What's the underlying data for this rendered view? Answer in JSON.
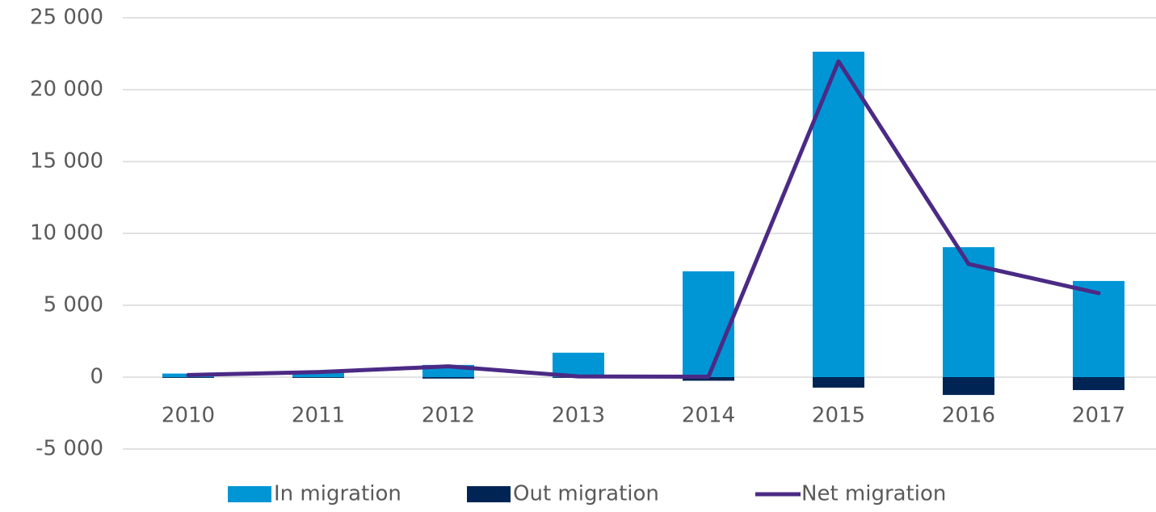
{
  "chart_data": {
    "type": "bar-line",
    "categories": [
      "2010",
      "2011",
      "2012",
      "2013",
      "2014",
      "2015",
      "2016",
      "2017"
    ],
    "series": [
      {
        "name": "In migration",
        "type": "bar",
        "color": "#0096d6",
        "values": [
          250,
          300,
          850,
          1700,
          7360,
          22640,
          9040,
          6690
        ]
      },
      {
        "name": "Out migration",
        "type": "bar",
        "color": "#002554",
        "values": [
          -50,
          -50,
          -100,
          -50,
          -250,
          -730,
          -1240,
          -900
        ]
      },
      {
        "name": "Net migration",
        "type": "line",
        "color": "#4b2a85",
        "values": [
          150,
          350,
          750,
          50,
          30,
          21970,
          7870,
          5840
        ]
      }
    ],
    "ylim": [
      -5000,
      25000
    ],
    "yticks": [
      {
        "value": -5000,
        "label": "-5 000"
      },
      {
        "value": 0,
        "label": "0"
      },
      {
        "value": 5000,
        "label": "5 000"
      },
      {
        "value": 10000,
        "label": "10 000"
      },
      {
        "value": 15000,
        "label": "15 000"
      },
      {
        "value": 20000,
        "label": "20 000"
      },
      {
        "value": 25000,
        "label": "25 000"
      }
    ],
    "grid": true,
    "legend": "bottom"
  }
}
